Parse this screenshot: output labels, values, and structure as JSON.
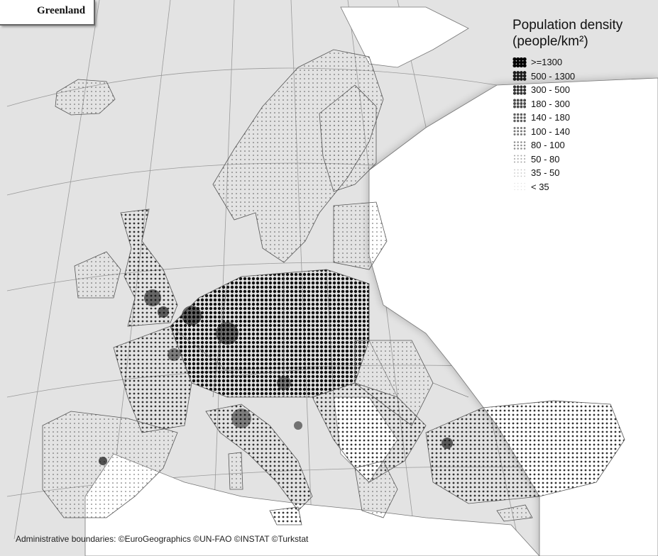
{
  "inset": {
    "label": "Greenland"
  },
  "legend": {
    "title_line1": "Population density",
    "title_line2": "(people/km²)",
    "items": [
      {
        "label": ">=1300",
        "color": "#000000"
      },
      {
        "label": "500 - 1300",
        "color": "#1a1a1a"
      },
      {
        "label": "300 - 500",
        "color": "#333333"
      },
      {
        "label": "180 - 300",
        "color": "#4a4a4a"
      },
      {
        "label": "140 - 180",
        "color": "#5e5e5e"
      },
      {
        "label": "100 - 140",
        "color": "#777777"
      },
      {
        "label": "80 - 100",
        "color": "#8f8f8f"
      },
      {
        "label": "50 - 80",
        "color": "#a8a8a8"
      },
      {
        "label": "35 - 50",
        "color": "#c2c2c2"
      },
      {
        "label": "< 35",
        "color": "#d9d9d9"
      }
    ]
  },
  "credits": "Administrative boundaries: ©EuroGeographics ©UN-FAO ©INSTAT ©Turkstat",
  "colors": {
    "sea": "#e6e6e6",
    "land": "#ffffff",
    "border": "#555555"
  }
}
